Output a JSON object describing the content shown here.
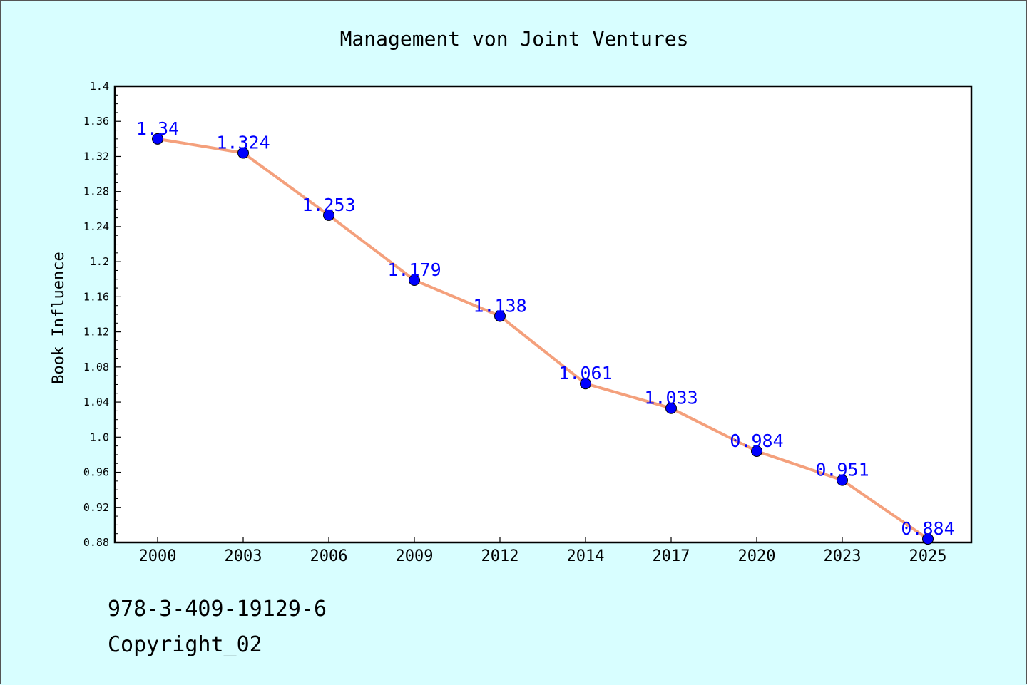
{
  "chart_data": {
    "type": "line",
    "title": "Management von Joint Ventures",
    "xlabel": "",
    "ylabel": "Book Influence",
    "categories": [
      "2000",
      "2003",
      "2006",
      "2009",
      "2012",
      "2014",
      "2017",
      "2020",
      "2023",
      "2025"
    ],
    "series": [
      {
        "values": [
          1.34,
          1.324,
          1.253,
          1.179,
          1.138,
          1.061,
          1.033,
          0.984,
          0.951,
          0.884
        ]
      }
    ],
    "data_labels": [
      "1.34",
      "1.324",
      "1.253",
      "1.179",
      "1.138",
      "1.061",
      "1.033",
      "0.984",
      "0.951",
      "0.884"
    ],
    "ylim": [
      0.88,
      1.4
    ],
    "y_ticks": [
      0.88,
      0.92,
      0.96,
      1.0,
      1.04,
      1.08,
      1.12,
      1.16,
      1.2,
      1.24,
      1.28,
      1.32,
      1.36,
      1.4
    ],
    "y_tick_labels": [
      "0.88",
      "0.92",
      "0.96",
      "1.0",
      "1.04",
      "1.08",
      "1.12",
      "1.16",
      "1.2",
      "1.24",
      "1.28",
      "1.32",
      "1.36",
      "1.4"
    ],
    "grid": false,
    "legend": "none",
    "colors": {
      "background": "#d8feff",
      "plot_background": "#ffffff",
      "line": "#f4a07c",
      "marker": "#0000ff",
      "data_label": "#0000ff"
    }
  },
  "footer": {
    "isbn": "978-3-409-19129-6",
    "copyright": "Copyright_02"
  }
}
